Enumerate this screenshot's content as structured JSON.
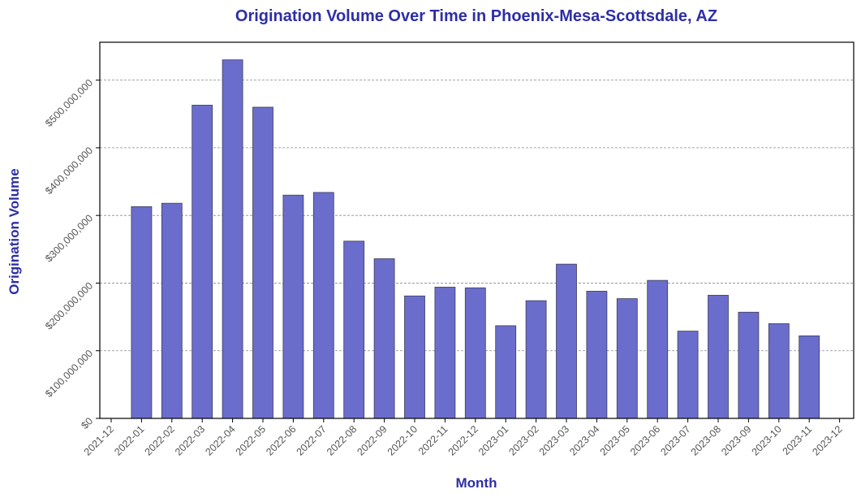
{
  "chart_data": {
    "type": "bar",
    "title": "Origination Volume Over Time in Phoenix-Mesa-Scottsdale, AZ",
    "xlabel": "Month",
    "ylabel": "Origination Volume",
    "x_ticks": [
      "2021-12",
      "2022-01",
      "2022-02",
      "2022-03",
      "2022-04",
      "2022-05",
      "2022-06",
      "2022-07",
      "2022-08",
      "2022-09",
      "2022-10",
      "2022-11",
      "2022-12",
      "2023-01",
      "2023-02",
      "2023-03",
      "2023-04",
      "2023-05",
      "2023-06",
      "2023-07",
      "2023-08",
      "2023-09",
      "2023-10",
      "2023-11",
      "2023-12"
    ],
    "categories": [
      "2022-01",
      "2022-02",
      "2022-03",
      "2022-04",
      "2022-05",
      "2022-06",
      "2022-07",
      "2022-08",
      "2022-09",
      "2022-10",
      "2022-11",
      "2022-12",
      "2023-01",
      "2023-02",
      "2023-03",
      "2023-04",
      "2023-05",
      "2023-06",
      "2023-07",
      "2023-08",
      "2023-09",
      "2023-10",
      "2023-11"
    ],
    "values": [
      313000000,
      318000000,
      463000000,
      530000000,
      460000000,
      330000000,
      334000000,
      262000000,
      236000000,
      181000000,
      194000000,
      193000000,
      137000000,
      174000000,
      228000000,
      188000000,
      177000000,
      204000000,
      129000000,
      182000000,
      157000000,
      140000000,
      122000000
    ],
    "y_ticks": [
      0,
      100000000,
      200000000,
      300000000,
      400000000,
      500000000
    ],
    "y_tick_labels": [
      "$0",
      "$100,000,000",
      "$200,000,000",
      "$300,000,000",
      "$400,000,000",
      "$500,000,000"
    ],
    "ylim": [
      0,
      556000000
    ],
    "grid": "horizontal dashed",
    "colors": {
      "bar_fill": "#6b6dcc",
      "bar_edge": "#3c3c5a",
      "title": "#2e2ea6",
      "axis_label": "#2e2ea6",
      "grid": "#8a8a8a",
      "tick_text": "#555555"
    }
  }
}
